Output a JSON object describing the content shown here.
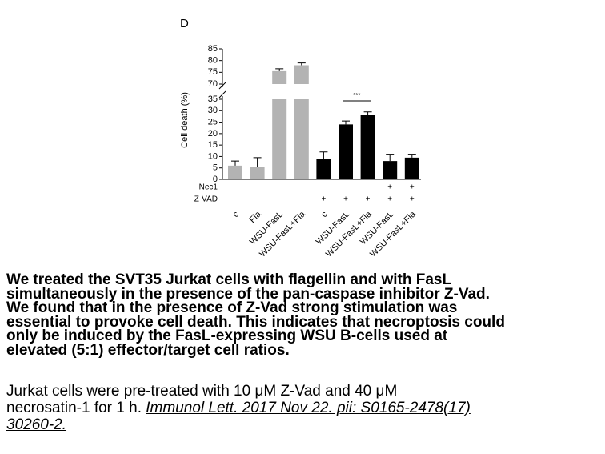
{
  "chart_data": {
    "type": "bar",
    "panel_label": "D",
    "ylabel": "Cell death (%)",
    "categories": [
      "c",
      "Fla",
      "WSU-FasL",
      "WSU-FasL+Fla",
      "c",
      "WSU-FasL",
      "WSU-FasL+Fla",
      "WSU-FasL",
      "WSU-FasL+Fla"
    ],
    "values": [
      6,
      5.5,
      75.5,
      78,
      9,
      24,
      28,
      8,
      9.5
    ],
    "errors": [
      2,
      4,
      1,
      1,
      3,
      1.5,
      1.5,
      3,
      1.5
    ],
    "colors": [
      "#b3b3b3",
      "#b3b3b3",
      "#b3b3b3",
      "#b3b3b3",
      "#000000",
      "#000000",
      "#000000",
      "#000000",
      "#000000"
    ],
    "ylim": [
      0,
      85
    ],
    "y_break": [
      35,
      70
    ],
    "yticks": [
      0,
      5,
      10,
      15,
      20,
      25,
      30,
      35,
      70,
      75,
      80,
      85
    ],
    "treatments": [
      {
        "name": "Nec1",
        "marks": [
          "-",
          "-",
          "-",
          "-",
          "-",
          "-",
          "-",
          "+",
          "+"
        ]
      },
      {
        "name": "Z-VAD",
        "marks": [
          "-",
          "-",
          "-",
          "-",
          "+",
          "+",
          "+",
          "+",
          "+"
        ]
      }
    ],
    "annotations": [
      "***"
    ]
  },
  "caption": {
    "bold_lines": [
      "We treated the SVT35 Jurkat cells with flagellin and with FasL",
      "simultaneously in the presence of the pan-caspase inhibitor Z-Vad.",
      "We found that in the presence of Z-Vad strong stimulation was",
      "essential to provoke cell death. This indicates that necroptosis could",
      "only be induced by the FasL-expressing WSU B-cells used at",
      "elevated (5:1) effector/target cell ratios."
    ],
    "note_lines": [
      "Jurkat cells were pre-treated with 10 μM Z-Vad and 40 μM",
      "necrosatin-1 for 1 h."
    ],
    "citation_lines": [
      "Immunol Lett. 2017 Nov 22. pii: S0165-2478(17)",
      "30260-2."
    ]
  }
}
